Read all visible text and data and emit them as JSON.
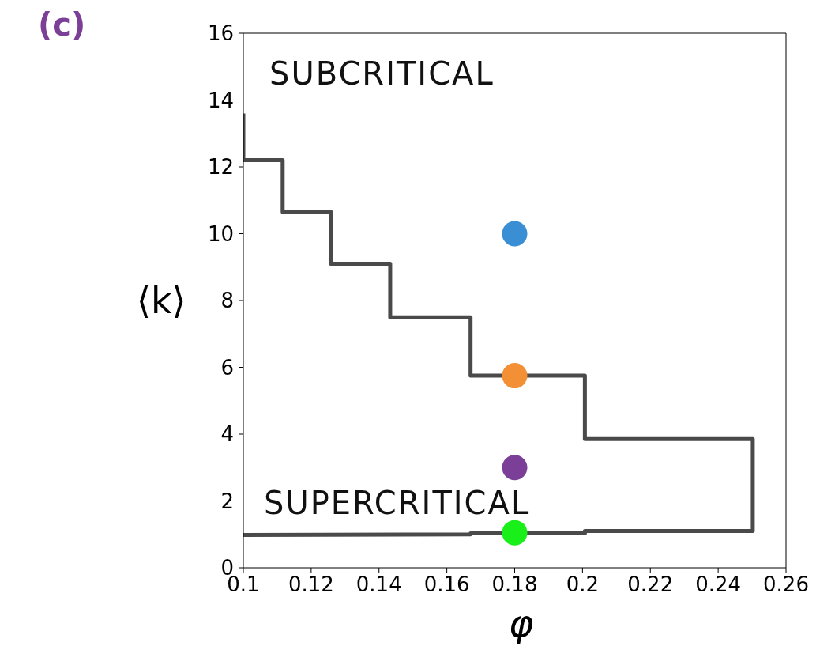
{
  "chart_data": {
    "type": "line",
    "xlabel": "φ",
    "ylabel": "⟨k⟩",
    "annotations": [
      "(c)",
      "SUBCRITICAL",
      "SUPERCRITICAL"
    ],
    "xlim": [
      0.1,
      0.26
    ],
    "xticks": [
      0.1,
      0.12,
      0.14,
      0.16,
      0.18,
      0.2,
      0.22,
      0.24,
      0.26
    ],
    "ylim": [
      0,
      16
    ],
    "yticks": [
      0,
      2,
      4,
      6,
      8,
      10,
      12,
      14,
      16
    ],
    "grid": false,
    "series": [
      {
        "color": "#4a4a4a",
        "marker": "none",
        "line_style": "solid",
        "x": [
          0.1,
          0.1,
          0.1116,
          0.1116,
          0.1258,
          0.1258,
          0.1433,
          0.1433,
          0.167,
          0.167,
          0.2007,
          0.2007,
          0.2502,
          0.2502,
          0.2007,
          0.2007,
          0.167,
          0.167,
          0.1
        ],
        "values": [
          13.6,
          12.2,
          12.2,
          10.65,
          10.65,
          9.1,
          9.1,
          7.5,
          7.5,
          5.75,
          5.75,
          3.85,
          3.85,
          1.1,
          1.1,
          1.03,
          1.03,
          1.0,
          0.98
        ]
      },
      {
        "type": "scatter",
        "color": "#3a8fd4",
        "marker": "circle",
        "x": [
          0.18
        ],
        "values": [
          10
        ]
      },
      {
        "type": "scatter",
        "color": "#f39035",
        "marker": "circle",
        "x": [
          0.18
        ],
        "values": [
          5.75
        ]
      },
      {
        "type": "scatter",
        "color": "#7b3f98",
        "marker": "circle",
        "x": [
          0.18
        ],
        "values": [
          3
        ]
      },
      {
        "type": "scatter",
        "color": "#19f019",
        "marker": "circle",
        "x": [
          0.18
        ],
        "values": [
          1.05
        ]
      }
    ]
  }
}
